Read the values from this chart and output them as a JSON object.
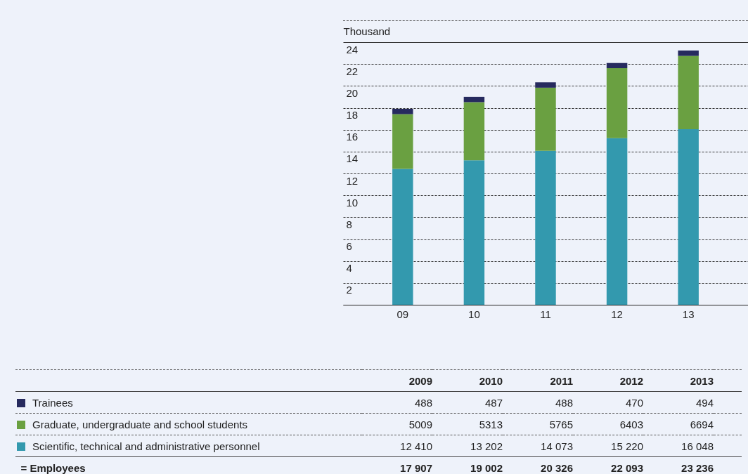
{
  "chart_data": {
    "type": "bar",
    "stacked": true,
    "ylabel": "Thousand",
    "categories": [
      "09",
      "10",
      "11",
      "12",
      "13"
    ],
    "ylim": [
      0,
      24
    ],
    "yticks": [
      {
        "value": 0,
        "label": null
      },
      2,
      4,
      6,
      8,
      10,
      12,
      14,
      16,
      18,
      20,
      22,
      24
    ],
    "grid": "y",
    "legend": "bottom",
    "series": [
      {
        "name": "Scientific, technical and administrative personnel",
        "color": "#3399ae",
        "values": [
          12.41,
          13.202,
          14.073,
          15.22,
          16.048
        ]
      },
      {
        "name": "Graduate, undergraduate and school students",
        "color": "#6aa041",
        "values": [
          5.009,
          5.313,
          5.765,
          6.403,
          6.694
        ]
      },
      {
        "name": "Trainees",
        "color": "#262a5e",
        "values": [
          0.488,
          0.487,
          0.488,
          0.47,
          0.494
        ]
      }
    ],
    "annotations": [
      "2009",
      "2010",
      "2011",
      "2012",
      "2013",
      "= Employees",
      "17 907",
      "19 002",
      "20 326",
      "22 093",
      "23 236",
      "488",
      "487",
      "488",
      "470",
      "494",
      "5009",
      "5313",
      "5765",
      "6403",
      "6694",
      "12 410",
      "13 202",
      "14 073",
      "15 220",
      "16 048"
    ]
  }
}
